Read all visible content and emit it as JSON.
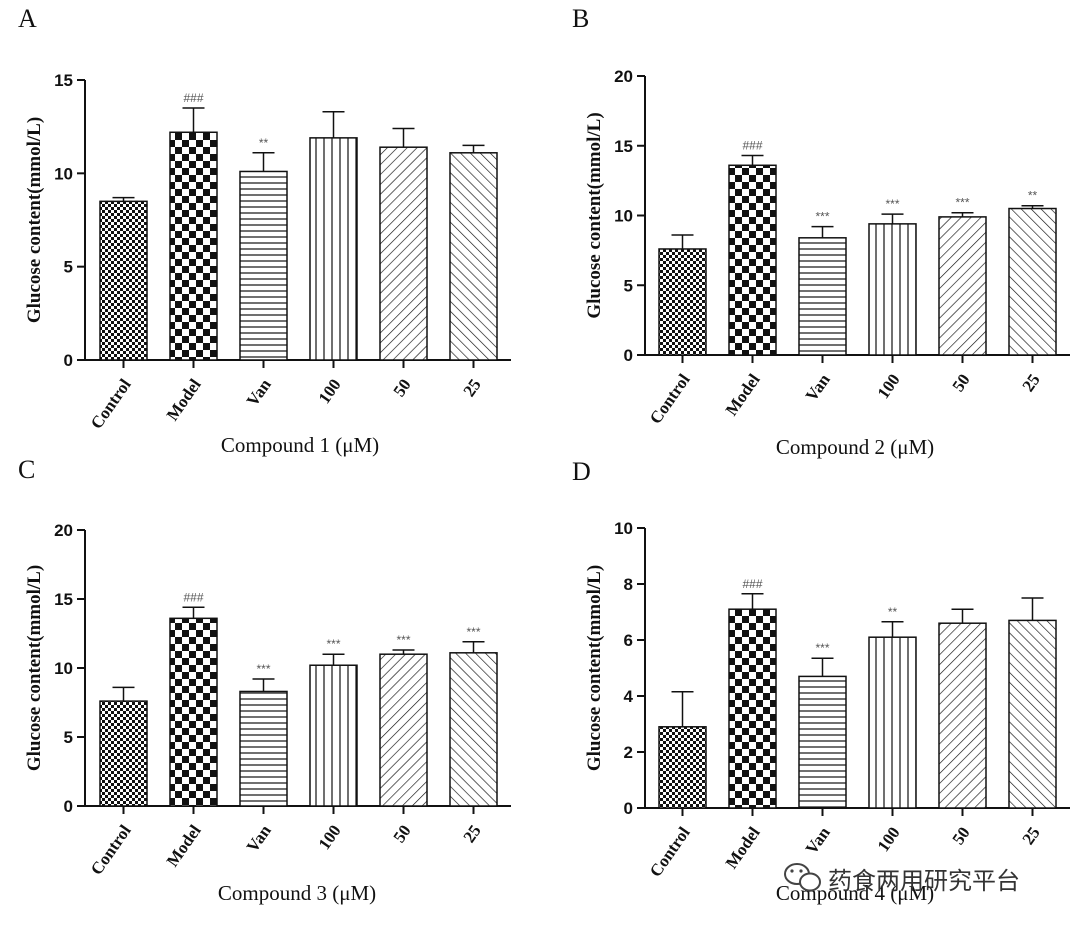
{
  "chart_data": [
    {
      "panel": "A",
      "type": "bar",
      "categories": [
        "Control",
        "Model",
        "Van",
        "100",
        "50",
        "25"
      ],
      "values": [
        8.5,
        12.2,
        10.1,
        11.9,
        11.4,
        11.1
      ],
      "errors": [
        0.2,
        1.3,
        1.0,
        1.4,
        1.0,
        0.4
      ],
      "significance": [
        "",
        "###",
        "**",
        "",
        "",
        ""
      ],
      "ylabel": "Glucose content(mmol/L)",
      "xlabel": "Compound 1 (μM)",
      "ylim": [
        0,
        15
      ],
      "yticks": [
        0,
        5,
        10,
        15
      ],
      "grid": false
    },
    {
      "panel": "B",
      "type": "bar",
      "categories": [
        "Control",
        "Model",
        "Van",
        "100",
        "50",
        "25"
      ],
      "values": [
        7.6,
        13.6,
        8.4,
        9.4,
        9.9,
        10.5
      ],
      "errors": [
        1.0,
        0.7,
        0.8,
        0.7,
        0.3,
        0.2
      ],
      "significance": [
        "",
        "###",
        "***",
        "***",
        "***",
        "**"
      ],
      "ylabel": "Glucose content(mmol/L)",
      "xlabel": "Compound 2 (μM)",
      "ylim": [
        0,
        20
      ],
      "yticks": [
        0,
        5,
        10,
        15,
        20
      ],
      "grid": false
    },
    {
      "panel": "C",
      "type": "bar",
      "categories": [
        "Control",
        "Model",
        "Van",
        "100",
        "50",
        "25"
      ],
      "values": [
        7.6,
        13.6,
        8.3,
        10.2,
        11.0,
        11.1
      ],
      "errors": [
        1.0,
        0.8,
        0.9,
        0.8,
        0.3,
        0.8
      ],
      "significance": [
        "",
        "###",
        "***",
        "***",
        "***",
        "***"
      ],
      "ylabel": "Glucose content(mmol/L)",
      "xlabel": "Compound 3 (μM)",
      "ylim": [
        0,
        20
      ],
      "yticks": [
        0,
        5,
        10,
        15,
        20
      ],
      "grid": false
    },
    {
      "panel": "D",
      "type": "bar",
      "categories": [
        "Control",
        "Model",
        "Van",
        "100",
        "50",
        "25"
      ],
      "values": [
        2.9,
        7.1,
        4.7,
        6.1,
        6.6,
        6.7
      ],
      "errors": [
        1.25,
        0.55,
        0.65,
        0.55,
        0.5,
        0.8
      ],
      "significance": [
        "",
        "###",
        "***",
        "**",
        "",
        ""
      ],
      "ylabel": "Glucose content(mmol/L)",
      "xlabel": "Compound 4 (μM)",
      "ylim": [
        0,
        10
      ],
      "yticks": [
        0,
        2,
        4,
        6,
        8,
        10
      ],
      "grid": false
    }
  ],
  "bar_patterns": [
    "fine-check",
    "checkerboard",
    "horizontal-lines",
    "vertical-lines",
    "diagonal-up",
    "diagonal-down"
  ],
  "colors": {
    "ink": "#111111",
    "significance": "#555555",
    "background": "#ffffff"
  },
  "watermark": {
    "text": "药食两用研究平台",
    "icon": "wechat-icon"
  }
}
